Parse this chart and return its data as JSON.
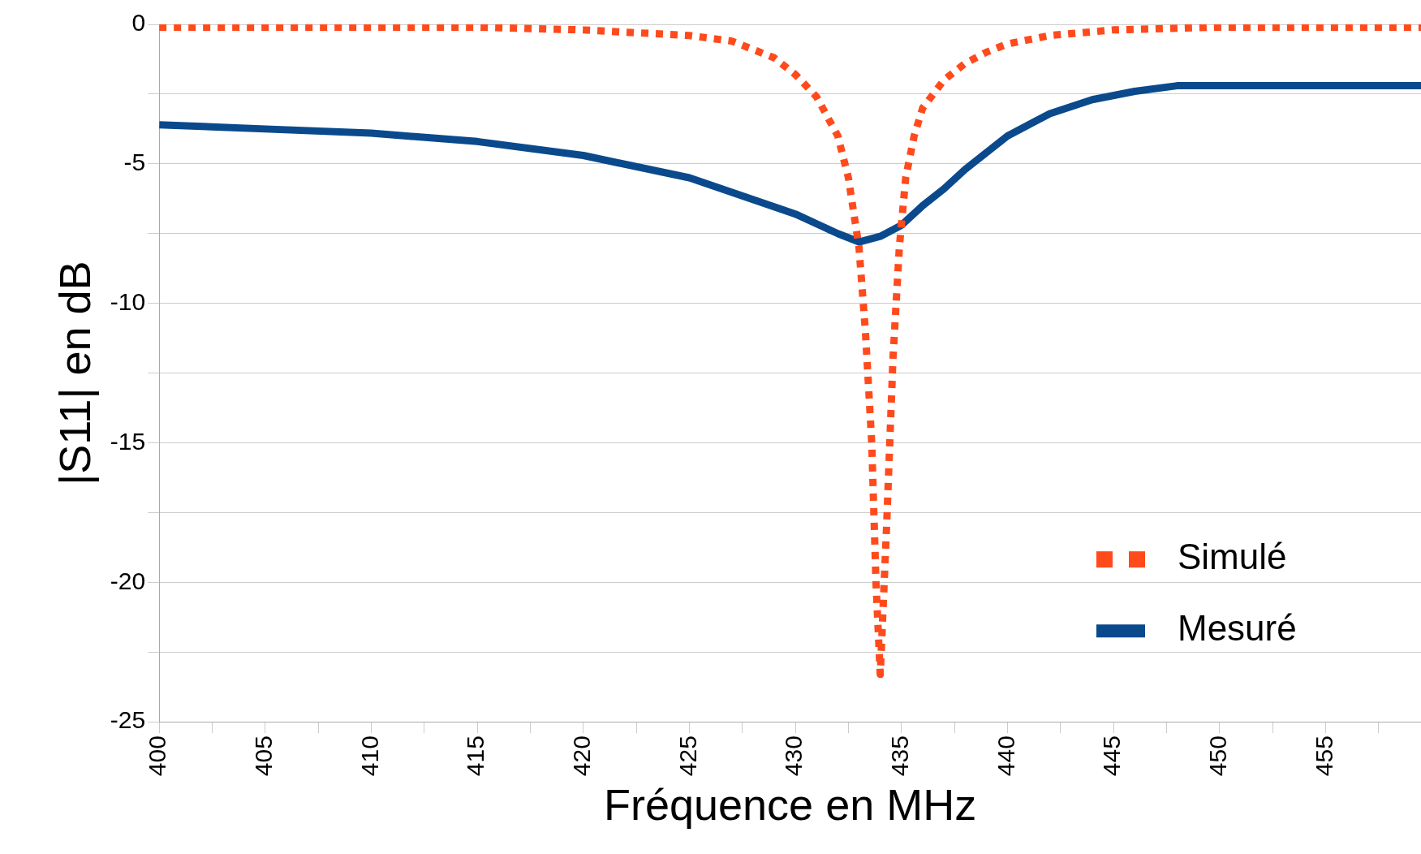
{
  "chart_data": {
    "type": "line",
    "xlabel": "Fréquence en MHz",
    "ylabel": "|S11| en dB",
    "xlim": [
      400,
      459.5
    ],
    "ylim": [
      -25,
      0
    ],
    "xticks": [
      400,
      {
        "value": 402.5,
        "label": null
      },
      405,
      {
        "value": 407.5,
        "label": null
      },
      410,
      {
        "value": 412.5,
        "label": null
      },
      415,
      {
        "value": 417.5,
        "label": null
      },
      420,
      {
        "value": 422.5,
        "label": null
      },
      425,
      {
        "value": 427.5,
        "label": null
      },
      430,
      {
        "value": 432.5,
        "label": null
      },
      435,
      {
        "value": 437.5,
        "label": null
      },
      440,
      {
        "value": 442.5,
        "label": null
      },
      445,
      {
        "value": 447.5,
        "label": null
      },
      450,
      {
        "value": 452.5,
        "label": null
      },
      455,
      {
        "value": 457.5,
        "label": null
      }
    ],
    "yticks": [
      0,
      {
        "value": -2.5,
        "label": null
      },
      -5,
      {
        "value": -7.5,
        "label": null
      },
      -10,
      {
        "value": -12.5,
        "label": null
      },
      -15,
      {
        "value": -17.5,
        "label": null
      },
      -20,
      {
        "value": -22.5,
        "label": null
      },
      -25
    ],
    "grid": "y",
    "legend": "bottom right",
    "marker": "none",
    "series": [
      {
        "name": "Simulé",
        "color": "#ff4a1c",
        "line_style": "dotted",
        "x": [
          400,
          415,
          420,
          425,
          427,
          429,
          430,
          431,
          432,
          432.5,
          433,
          433.3,
          433.6,
          433.8,
          434,
          434.3,
          434.6,
          434.9,
          435.2,
          435.6,
          436,
          437,
          438,
          439,
          440,
          442,
          445,
          450,
          459.5
        ],
        "values": [
          -0.1,
          -0.1,
          -0.2,
          -0.4,
          -0.6,
          -1.2,
          -1.8,
          -2.6,
          -4.0,
          -5.5,
          -8,
          -11,
          -15,
          -20,
          -23.3,
          -18,
          -12,
          -8,
          -5.5,
          -4,
          -3,
          -2.0,
          -1.4,
          -1.0,
          -0.7,
          -0.4,
          -0.2,
          -0.1,
          -0.1
        ]
      },
      {
        "name": "Mesuré",
        "color": "#0a4a8c",
        "line_style": "solid",
        "x": [
          400,
          405,
          410,
          415,
          420,
          425,
          430,
          432,
          433,
          434,
          435,
          436,
          437,
          438,
          440,
          442,
          444,
          446,
          448,
          450,
          455,
          459.5
        ],
        "values": [
          -3.6,
          -3.75,
          -3.9,
          -4.2,
          -4.7,
          -5.5,
          -6.8,
          -7.5,
          -7.8,
          -7.6,
          -7.2,
          -6.5,
          -5.9,
          -5.2,
          -4.0,
          -3.2,
          -2.7,
          -2.4,
          -2.2,
          -2.2,
          -2.2,
          -2.2
        ]
      }
    ]
  }
}
